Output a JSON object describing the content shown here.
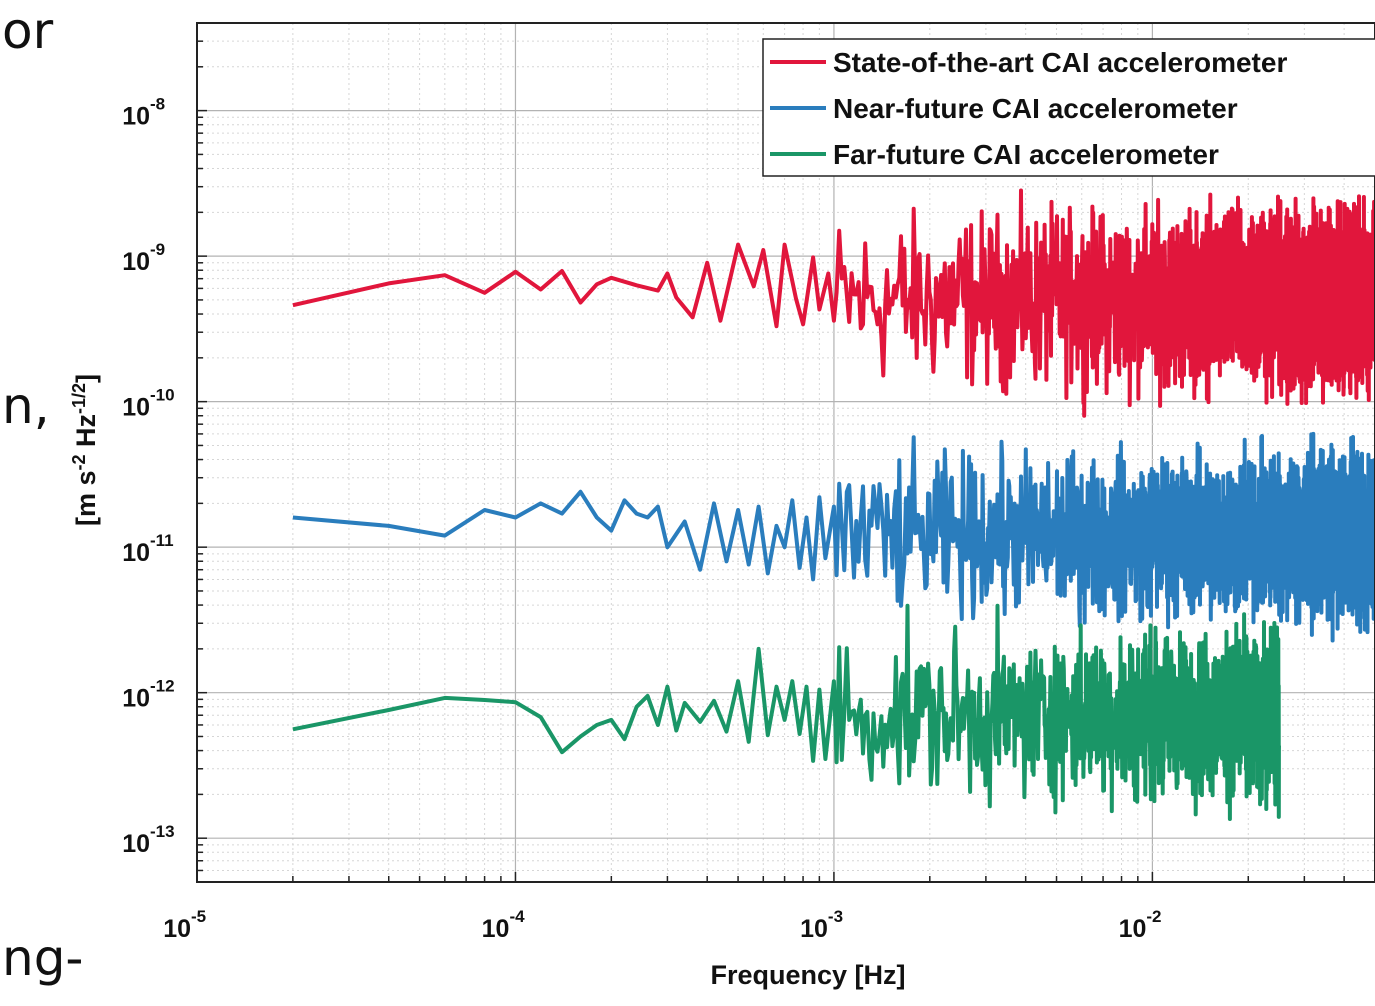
{
  "page_fragments": {
    "line1": "or",
    "line2": "n,",
    "line3": "ng-"
  },
  "chart_data": {
    "type": "line",
    "x_scale": "log",
    "y_scale": "log",
    "xlim": [
      1e-05,
      0.05
    ],
    "ylim": [
      5e-14,
      4e-08
    ],
    "xlabel": "Frequency  [Hz]",
    "ylabel": "[m s-2 Hz-1/2]",
    "ylabel_parts": [
      "[m s",
      "-2",
      " Hz",
      "-1/2",
      "]"
    ],
    "grid": true,
    "legend_position": "top-right",
    "x_ticks": [
      {
        "value": 1e-05,
        "base": "10",
        "exp": "-5"
      },
      {
        "value": 0.0001,
        "base": "10",
        "exp": "-4"
      },
      {
        "value": 0.001,
        "base": "10",
        "exp": "-3"
      },
      {
        "value": 0.01,
        "base": "10",
        "exp": "-2"
      }
    ],
    "y_ticks": [
      {
        "value": 1e-13,
        "base": "10",
        "exp": "-13"
      },
      {
        "value": 1e-12,
        "base": "10",
        "exp": "-12"
      },
      {
        "value": 1e-11,
        "base": "10",
        "exp": "-11"
      },
      {
        "value": 1e-10,
        "base": "10",
        "exp": "-10"
      },
      {
        "value": 1e-09,
        "base": "10",
        "exp": "-9"
      },
      {
        "value": 1e-08,
        "base": "10",
        "exp": "-8"
      }
    ],
    "series": [
      {
        "name": "State-of-the-art CAI accelerometer",
        "color": "#e1163c",
        "x_range": [
          2e-05,
          0.05
        ],
        "base_level": 5e-10,
        "noise_decades": 0.28,
        "x": [
          2e-05,
          4e-05,
          6e-05,
          8e-05,
          0.0001,
          0.00012,
          0.00014,
          0.00016,
          0.00018,
          0.0002,
          0.00024,
          0.00028,
          0.0003,
          0.00032,
          0.00036,
          0.0004,
          0.00044,
          0.0005,
          0.00056,
          0.0006,
          0.00066,
          0.0007,
          0.00076,
          0.0008,
          0.00086,
          0.0009,
          0.00096,
          0.001
        ],
        "y": [
          4.6e-10,
          6.5e-10,
          7.4e-10,
          5.6e-10,
          7.8e-10,
          5.9e-10,
          7.9e-10,
          4.8e-10,
          6.4e-10,
          7.1e-10,
          6.3e-10,
          5.8e-10,
          7.6e-10,
          5.2e-10,
          3.8e-10,
          9e-10,
          3.6e-10,
          1.2e-09,
          6.2e-10,
          1.1e-09,
          3.3e-10,
          1.2e-09,
          5.1e-10,
          3.4e-10,
          9.8e-10,
          4.3e-10,
          7.6e-10,
          3.6e-10
        ]
      },
      {
        "name": "Near-future CAI accelerometer",
        "color": "#2a7dbd",
        "x_range": [
          2e-05,
          0.05
        ],
        "base_level": 1.2e-11,
        "noise_decades": 0.26,
        "x": [
          2e-05,
          4e-05,
          6e-05,
          8e-05,
          0.0001,
          0.00012,
          0.00014,
          0.00016,
          0.00018,
          0.0002,
          0.00022,
          0.00024,
          0.00026,
          0.00028,
          0.0003,
          0.00034,
          0.00038,
          0.00042,
          0.00046,
          0.0005,
          0.00054,
          0.00058,
          0.00062,
          0.00066,
          0.0007,
          0.00074,
          0.00078,
          0.00082,
          0.00086,
          0.0009,
          0.00094,
          0.001
        ],
        "y": [
          1.6e-11,
          1.4e-11,
          1.2e-11,
          1.8e-11,
          1.6e-11,
          2e-11,
          1.7e-11,
          2.4e-11,
          1.6e-11,
          1.3e-11,
          2.1e-11,
          1.7e-11,
          1.6e-11,
          1.9e-11,
          1e-11,
          1.5e-11,
          7e-12,
          2e-11,
          8e-12,
          1.8e-11,
          7.6e-12,
          1.9e-11,
          6.6e-12,
          1.4e-11,
          1e-11,
          2.1e-11,
          7.2e-12,
          1.6e-11,
          6e-12,
          2.2e-11,
          8.4e-12,
          1.9e-11
        ]
      },
      {
        "name": "Far-future CAI accelerometer",
        "color": "#1a9667",
        "x_range": [
          2e-05,
          0.025
        ],
        "base_level": 7e-13,
        "noise_decades": 0.26,
        "x": [
          2e-05,
          4e-05,
          6e-05,
          8e-05,
          0.0001,
          0.00012,
          0.00014,
          0.00016,
          0.00018,
          0.0002,
          0.00022,
          0.00024,
          0.00026,
          0.00028,
          0.0003,
          0.00032,
          0.00034,
          0.00038,
          0.00042,
          0.00046,
          0.0005,
          0.00054,
          0.00058,
          0.00062,
          0.00066,
          0.0007,
          0.00074,
          0.00078,
          0.00082,
          0.00086,
          0.0009,
          0.00094,
          0.001
        ],
        "y": [
          5.6e-13,
          7.6e-13,
          9.2e-13,
          8.9e-13,
          8.6e-13,
          6.8e-13,
          3.9e-13,
          5e-13,
          6e-13,
          6.5e-13,
          4.8e-13,
          8e-13,
          9.5e-13,
          6e-13,
          1.1e-12,
          5.5e-13,
          8.5e-13,
          6.3e-13,
          8.8e-13,
          5.4e-13,
          1.2e-12,
          4.6e-13,
          2e-12,
          5.1e-13,
          1.1e-12,
          6.5e-13,
          1.2e-12,
          5.2e-13,
          1.1e-12,
          3.4e-13,
          1.05e-12,
          3.5e-13,
          1.2e-12
        ]
      }
    ]
  }
}
